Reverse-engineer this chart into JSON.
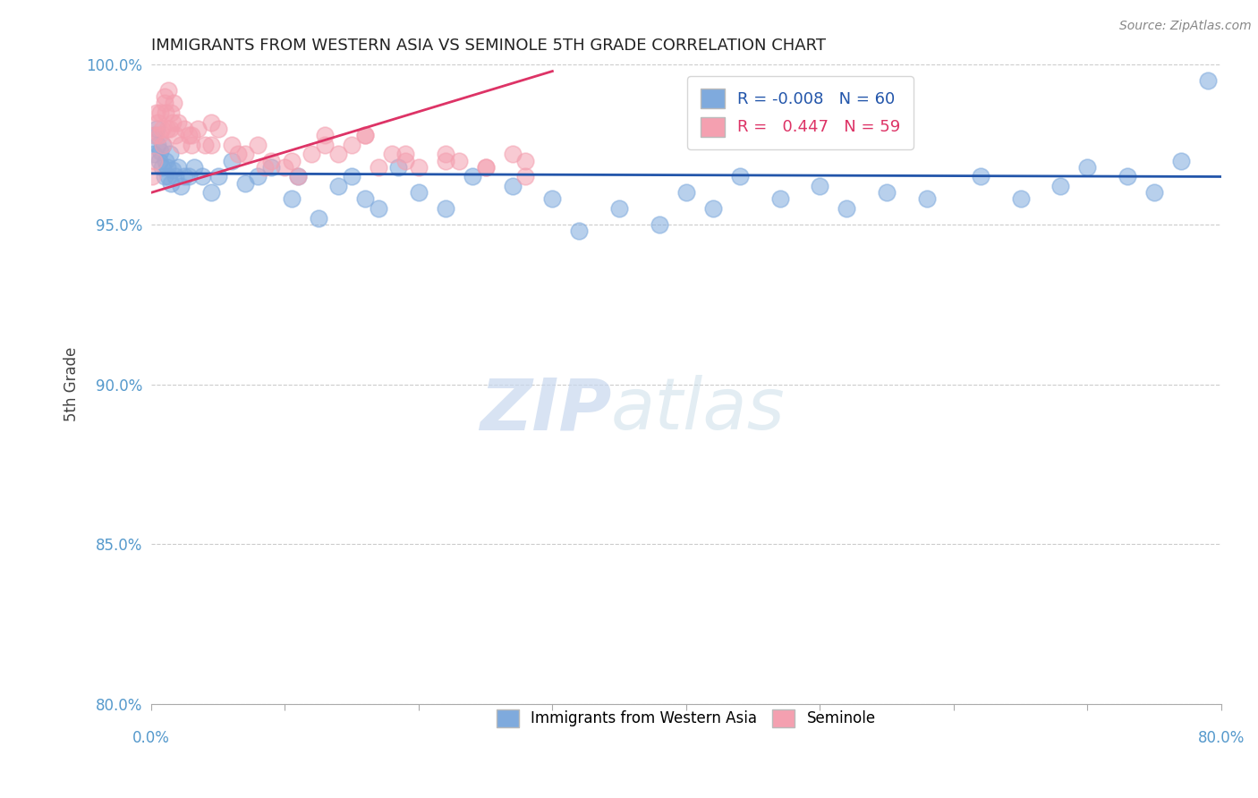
{
  "title": "IMMIGRANTS FROM WESTERN ASIA VS SEMINOLE 5TH GRADE CORRELATION CHART",
  "source_text": "Source: ZipAtlas.com",
  "ylabel": "5th Grade",
  "xlim": [
    0.0,
    80.0
  ],
  "ylim": [
    80.0,
    100.0
  ],
  "yticks": [
    80.0,
    85.0,
    90.0,
    95.0,
    100.0
  ],
  "xticks": [
    0.0,
    10.0,
    20.0,
    30.0,
    40.0,
    50.0,
    60.0,
    70.0,
    80.0
  ],
  "legend_blue_R": "-0.008",
  "legend_blue_N": "60",
  "legend_pink_R": "0.447",
  "legend_pink_N": "59",
  "blue_color": "#7faadd",
  "pink_color": "#f4a0b0",
  "blue_line_color": "#2255aa",
  "pink_line_color": "#dd3366",
  "watermark_zip": "ZIP",
  "watermark_atlas": "atlas",
  "blue_trend_x": [
    0.0,
    80.0
  ],
  "blue_trend_y": [
    96.6,
    96.5
  ],
  "pink_trend_x": [
    0.0,
    30.0
  ],
  "pink_trend_y": [
    96.0,
    99.8
  ],
  "blue_x": [
    0.2,
    0.3,
    0.4,
    0.5,
    0.6,
    0.7,
    0.8,
    0.9,
    1.0,
    1.1,
    1.2,
    1.3,
    1.4,
    1.5,
    1.6,
    1.8,
    2.0,
    2.2,
    2.5,
    2.8,
    3.2,
    3.8,
    4.5,
    5.0,
    6.0,
    7.0,
    8.0,
    9.0,
    10.5,
    11.0,
    12.5,
    14.0,
    15.0,
    16.0,
    17.0,
    18.5,
    20.0,
    22.0,
    24.0,
    27.0,
    30.0,
    32.0,
    35.0,
    38.0,
    40.0,
    42.0,
    44.0,
    47.0,
    50.0,
    52.0,
    55.0,
    58.0,
    62.0,
    65.0,
    68.0,
    70.0,
    73.0,
    75.0,
    77.0,
    79.0
  ],
  "blue_y": [
    97.2,
    97.8,
    98.0,
    97.5,
    97.0,
    97.3,
    96.8,
    97.5,
    96.5,
    97.0,
    96.8,
    96.5,
    97.2,
    96.3,
    96.7,
    96.5,
    96.8,
    96.2,
    96.5,
    96.5,
    96.8,
    96.5,
    96.0,
    96.5,
    97.0,
    96.3,
    96.5,
    96.8,
    95.8,
    96.5,
    95.2,
    96.2,
    96.5,
    95.8,
    95.5,
    96.8,
    96.0,
    95.5,
    96.5,
    96.2,
    95.8,
    94.8,
    95.5,
    95.0,
    96.0,
    95.5,
    96.5,
    95.8,
    96.2,
    95.5,
    96.0,
    95.8,
    96.5,
    95.8,
    96.2,
    96.8,
    96.5,
    96.0,
    97.0,
    99.5
  ],
  "pink_x": [
    0.1,
    0.2,
    0.3,
    0.4,
    0.5,
    0.6,
    0.7,
    0.8,
    0.9,
    1.0,
    1.0,
    1.1,
    1.2,
    1.3,
    1.4,
    1.5,
    1.6,
    1.7,
    1.8,
    2.0,
    2.2,
    2.5,
    2.8,
    3.0,
    3.5,
    4.0,
    4.5,
    5.0,
    6.0,
    7.0,
    8.0,
    9.0,
    10.0,
    11.0,
    12.0,
    13.0,
    14.0,
    15.0,
    16.0,
    17.0,
    18.0,
    19.0,
    20.0,
    22.0,
    23.0,
    25.0,
    27.0,
    28.0,
    3.0,
    4.5,
    6.5,
    8.5,
    10.5,
    13.0,
    16.0,
    19.0,
    22.0,
    25.0,
    28.0
  ],
  "pink_y": [
    96.5,
    97.0,
    97.8,
    98.5,
    98.2,
    97.8,
    98.5,
    98.0,
    97.5,
    98.8,
    99.0,
    98.5,
    98.0,
    99.2,
    98.0,
    98.5,
    98.2,
    98.8,
    97.8,
    98.2,
    97.5,
    98.0,
    97.8,
    97.5,
    98.0,
    97.5,
    98.2,
    98.0,
    97.5,
    97.2,
    97.5,
    97.0,
    96.8,
    96.5,
    97.2,
    97.8,
    97.2,
    97.5,
    97.8,
    96.8,
    97.2,
    97.0,
    96.8,
    97.2,
    97.0,
    96.8,
    97.2,
    97.0,
    97.8,
    97.5,
    97.2,
    96.8,
    97.0,
    97.5,
    97.8,
    97.2,
    97.0,
    96.8,
    96.5
  ]
}
